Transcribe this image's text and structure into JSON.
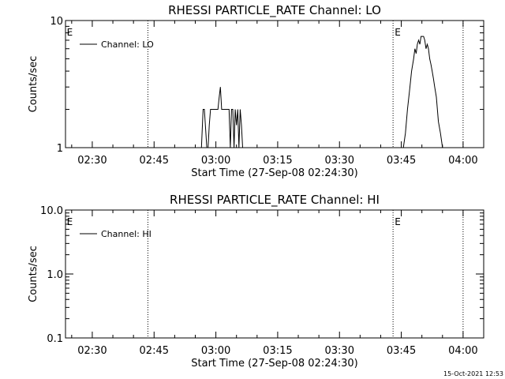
{
  "footer": {
    "timestamp": "15-Oct-2021 12:53"
  },
  "chart_data": [
    {
      "type": "line",
      "title": "RHESSI PARTICLE_RATE Channel: LO",
      "xlabel": "Start Time (27-Sep-08 02:24:30)",
      "ylabel": "Counts/sec",
      "y_scale": "log",
      "ylim": [
        1,
        10
      ],
      "y_ticks": [
        1,
        10
      ],
      "y_tick_labels": [
        "1",
        "10"
      ],
      "xlim_minutes": [
        143.5,
        245
      ],
      "x_ticks_minutes": [
        150,
        165,
        180,
        195,
        210,
        225,
        240
      ],
      "x_tick_labels": [
        "02:30",
        "02:45",
        "03:00",
        "03:15",
        "03:30",
        "03:45",
        "04:00"
      ],
      "event_lines_minutes": [
        163.5,
        223,
        240
      ],
      "flag_markers": [
        {
          "label": "E",
          "x_minutes": 143.8
        },
        {
          "label": "E",
          "x_minutes": 223.4
        }
      ],
      "legend": "top-left",
      "series": [
        {
          "name": "Channel: LO",
          "color": "#000000",
          "x_minutes": [
            176.5,
            176.9,
            177.2,
            177.8,
            178.1,
            178.4,
            178.7,
            179.0,
            179.3,
            180.5,
            180.8,
            181.1,
            181.4,
            181.7,
            182.0,
            182.3,
            182.6,
            182.9,
            183.2,
            183.5,
            183.8,
            184.1,
            184.4,
            184.7,
            185.0,
            185.3,
            185.6,
            185.9,
            186.2,
            186.5
          ],
          "values": [
            1,
            2,
            2,
            1,
            1,
            1.5,
            2,
            2,
            2,
            2,
            2.5,
            3,
            2,
            2,
            2,
            2,
            2,
            2,
            2,
            1,
            2,
            2,
            1,
            2,
            1.5,
            2,
            1,
            2,
            1.5,
            1
          ]
        },
        {
          "name": "Channel: LO",
          "color": "#000000",
          "x_minutes": [
            225.5,
            226.0,
            226.5,
            227.0,
            227.5,
            228.0,
            228.3,
            228.6,
            228.9,
            229.2,
            229.5,
            229.8,
            230.1,
            230.4,
            230.7,
            231.0,
            231.3,
            231.6,
            231.9,
            232.2,
            232.5,
            232.8,
            233.1,
            233.5,
            234.0,
            234.5,
            235.0
          ],
          "values": [
            1,
            1.3,
            2,
            2.8,
            4,
            5,
            6,
            5.5,
            6.5,
            7,
            6.5,
            7.5,
            7.5,
            7.5,
            7,
            6,
            6.5,
            6,
            5,
            4.5,
            4,
            3.5,
            3,
            2.5,
            1.6,
            1.3,
            1
          ]
        }
      ]
    },
    {
      "type": "line",
      "title": "RHESSI PARTICLE_RATE Channel: HI",
      "xlabel": "Start Time (27-Sep-08 02:24:30)",
      "ylabel": "Counts/sec",
      "y_scale": "log",
      "ylim": [
        0.1,
        10
      ],
      "y_ticks": [
        0.1,
        1,
        10
      ],
      "y_tick_labels": [
        "0.1",
        "1.0",
        "10.0"
      ],
      "xlim_minutes": [
        143.5,
        245
      ],
      "x_ticks_minutes": [
        150,
        165,
        180,
        195,
        210,
        225,
        240
      ],
      "x_tick_labels": [
        "02:30",
        "02:45",
        "03:00",
        "03:15",
        "03:30",
        "03:45",
        "04:00"
      ],
      "event_lines_minutes": [
        163.5,
        223,
        240
      ],
      "flag_markers": [
        {
          "label": "E",
          "x_minutes": 143.8
        },
        {
          "label": "E",
          "x_minutes": 223.4
        }
      ],
      "legend": "top-left",
      "series": [
        {
          "name": "Channel: HI",
          "color": "#000000",
          "x_minutes": [],
          "values": []
        }
      ]
    }
  ]
}
